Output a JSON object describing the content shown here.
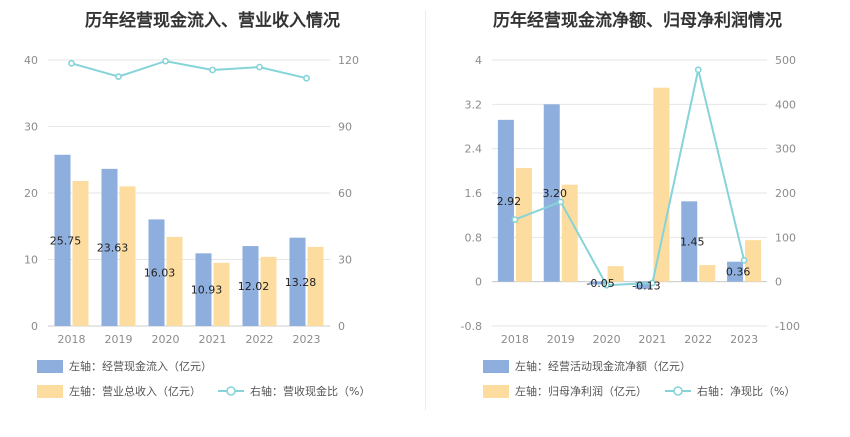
{
  "left": {
    "title": "历年经营现金流入、营业收入情况",
    "chart_data": {
      "type": "bar",
      "categories": [
        "2018",
        "2019",
        "2020",
        "2021",
        "2022",
        "2023"
      ],
      "series": [
        {
          "name": "左轴：经营现金流入（亿元）",
          "axis": "left",
          "type": "bar",
          "color": "#8eaede",
          "values": [
            25.75,
            23.63,
            16.03,
            10.93,
            12.02,
            13.28
          ],
          "labels": [
            "25.75",
            "23.63",
            "16.03",
            "10.93",
            "12.02",
            "13.28"
          ]
        },
        {
          "name": "左轴：营业总收入（亿元）",
          "axis": "left",
          "type": "bar",
          "color": "#fddca0",
          "values": [
            21.8,
            21.0,
            13.4,
            9.5,
            10.4,
            11.9
          ]
        },
        {
          "name": "右轴：营收现金比（%）",
          "axis": "right",
          "type": "line",
          "color": "#86d4d8",
          "values": [
            118.5,
            112.5,
            119.5,
            115.5,
            116.8,
            111.8
          ]
        }
      ],
      "ylim_left": [
        0,
        40
      ],
      "yticks_left": [
        "0",
        "10",
        "20",
        "30",
        "40"
      ],
      "ylim_right": [
        0,
        120
      ],
      "yticks_right": [
        "0",
        "30",
        "60",
        "90",
        "120"
      ],
      "grid": true,
      "legend": "bottom"
    }
  },
  "right": {
    "title": "历年经营现金流净额、归母净利润情况",
    "chart_data": {
      "type": "bar",
      "categories": [
        "2018",
        "2019",
        "2020",
        "2021",
        "2022",
        "2023"
      ],
      "series": [
        {
          "name": "左轴：经营活动现金流净额（亿元）",
          "axis": "left",
          "type": "bar",
          "color": "#8eaede",
          "values": [
            2.92,
            3.2,
            -0.05,
            -0.13,
            1.45,
            0.36
          ],
          "labels": [
            "2.92",
            "3.20",
            "-0.05",
            "-0.13",
            "1.45",
            "0.36"
          ]
        },
        {
          "name": "左轴：归母净利润（亿元）",
          "axis": "left",
          "type": "bar",
          "color": "#fddca0",
          "values": [
            2.05,
            1.75,
            0.28,
            3.5,
            0.3,
            0.75
          ]
        },
        {
          "name": "右轴：净现比（%）",
          "axis": "right",
          "type": "line",
          "color": "#86d4d8",
          "values": [
            140,
            180,
            -8,
            -3,
            478,
            48
          ]
        }
      ],
      "ylim_left": [
        -0.8,
        4
      ],
      "yticks_left": [
        "-0.8",
        "0",
        "0.8",
        "1.6",
        "2.4",
        "3.2",
        "4"
      ],
      "ylim_right": [
        -100,
        500
      ],
      "yticks_right": [
        "-100",
        "0",
        "100",
        "200",
        "300",
        "400",
        "500"
      ],
      "grid": true,
      "legend": "bottom"
    }
  }
}
